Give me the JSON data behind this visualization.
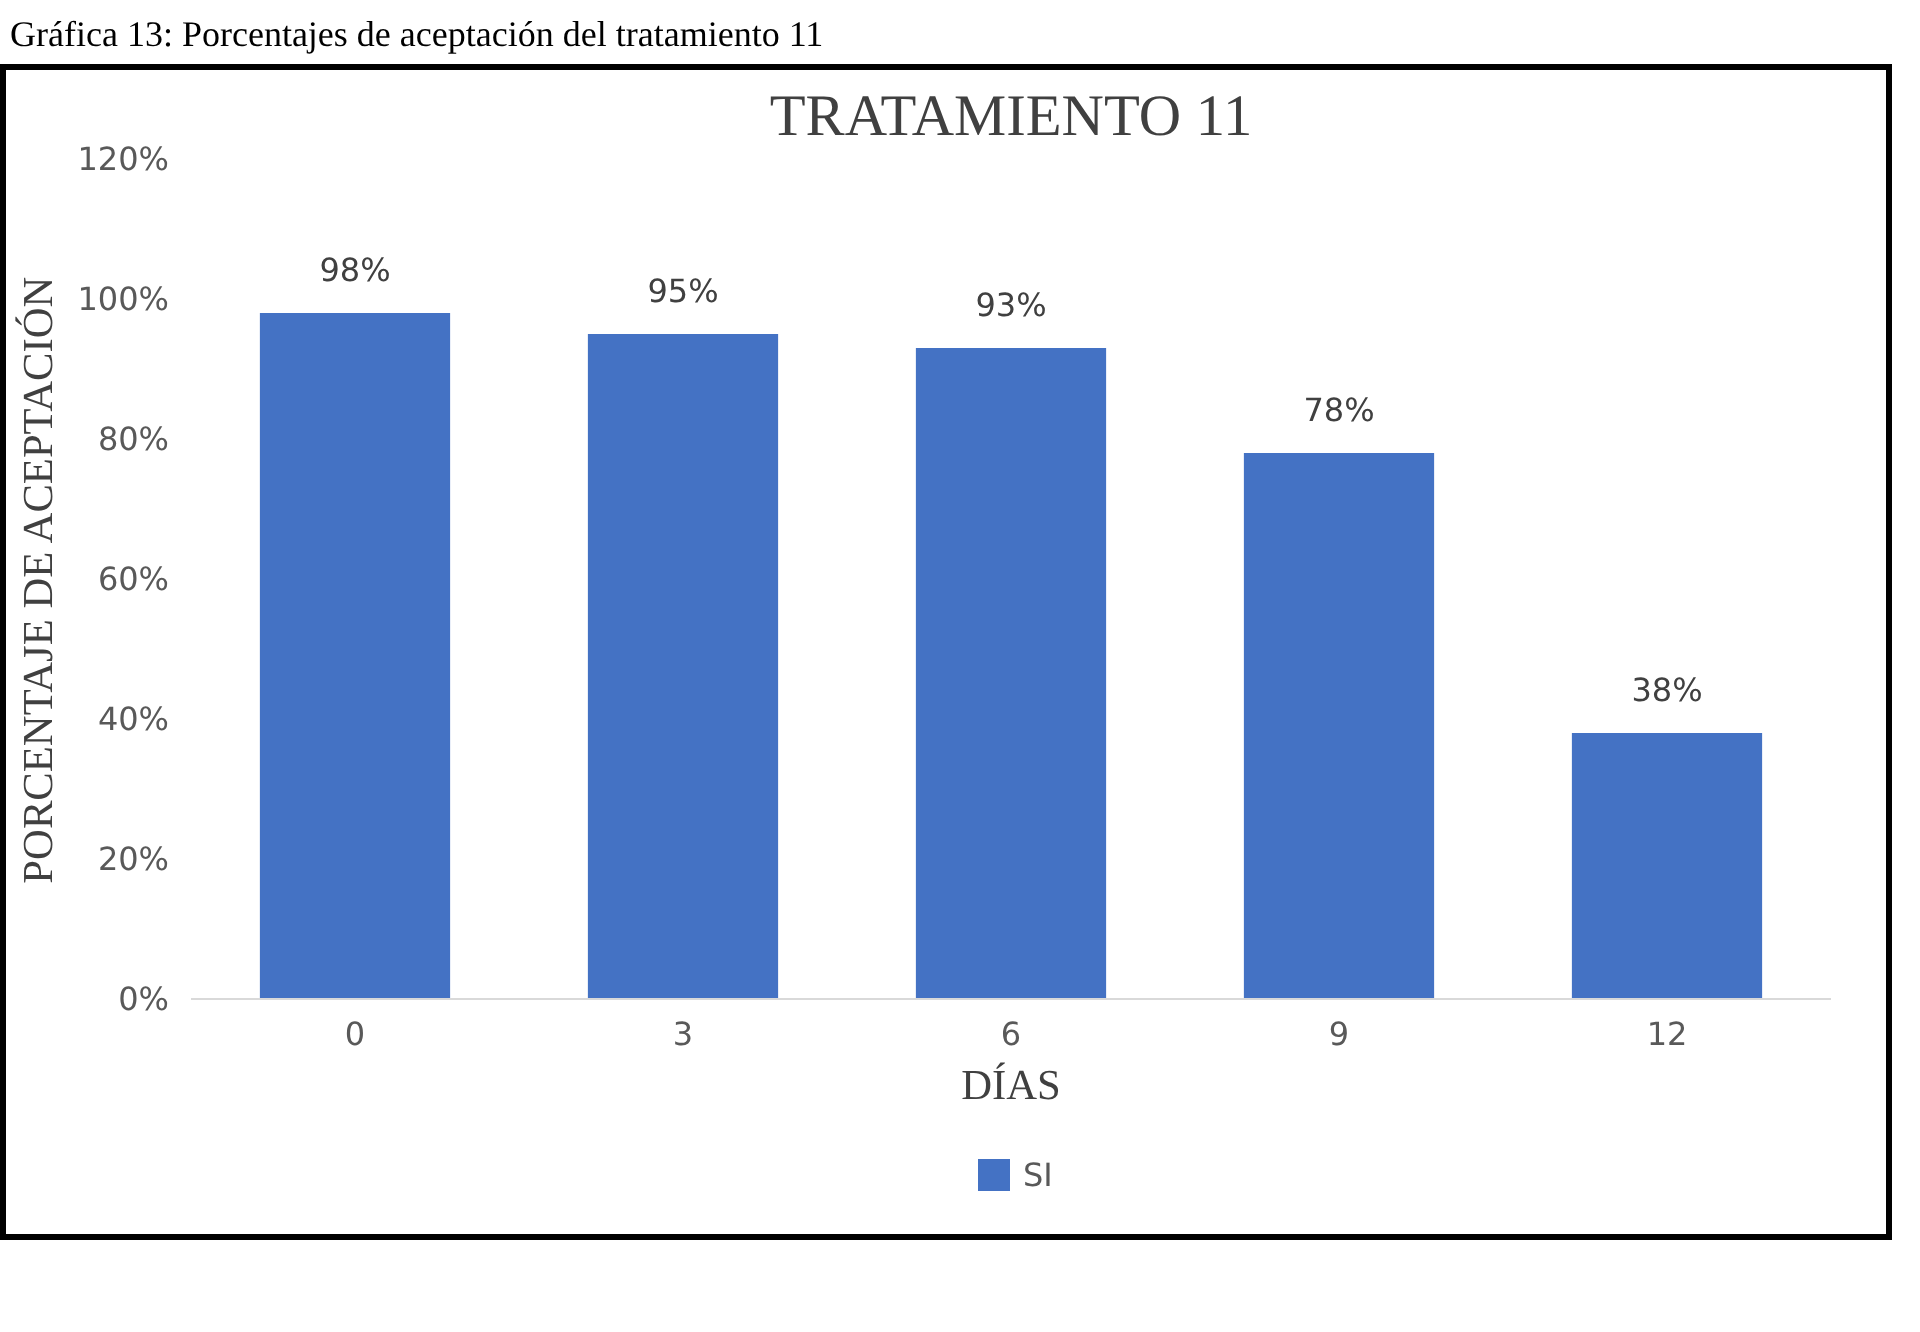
{
  "chart_data": {
    "type": "bar",
    "title": "TRATAMIENTO 11",
    "xlabel": "DÍAS",
    "ylabel": "PORCENTAJE DE ACEPTACIÓN",
    "annotations": [
      "Gráfica 13: Porcentajes de aceptación del tratamiento 11"
    ],
    "categories": [
      "0",
      "3",
      "6",
      "9",
      "12"
    ],
    "series": [
      {
        "name": "SI",
        "color": "#4472c4",
        "values": [
          98,
          95,
          93,
          78,
          38
        ]
      }
    ],
    "value_labels": [
      "98%",
      "95%",
      "93%",
      "78%",
      "38%"
    ],
    "ylim": [
      0,
      120
    ],
    "yticks": [
      {
        "value": 0,
        "label": "0%"
      },
      {
        "value": 20,
        "label": "20%"
      },
      {
        "value": 40,
        "label": "40%"
      },
      {
        "value": 60,
        "label": "60%"
      },
      {
        "value": 80,
        "label": "80%"
      },
      {
        "value": 100,
        "label": "100%"
      },
      {
        "value": 120,
        "label": "120%"
      }
    ],
    "grid": false,
    "legend": "bottom"
  }
}
